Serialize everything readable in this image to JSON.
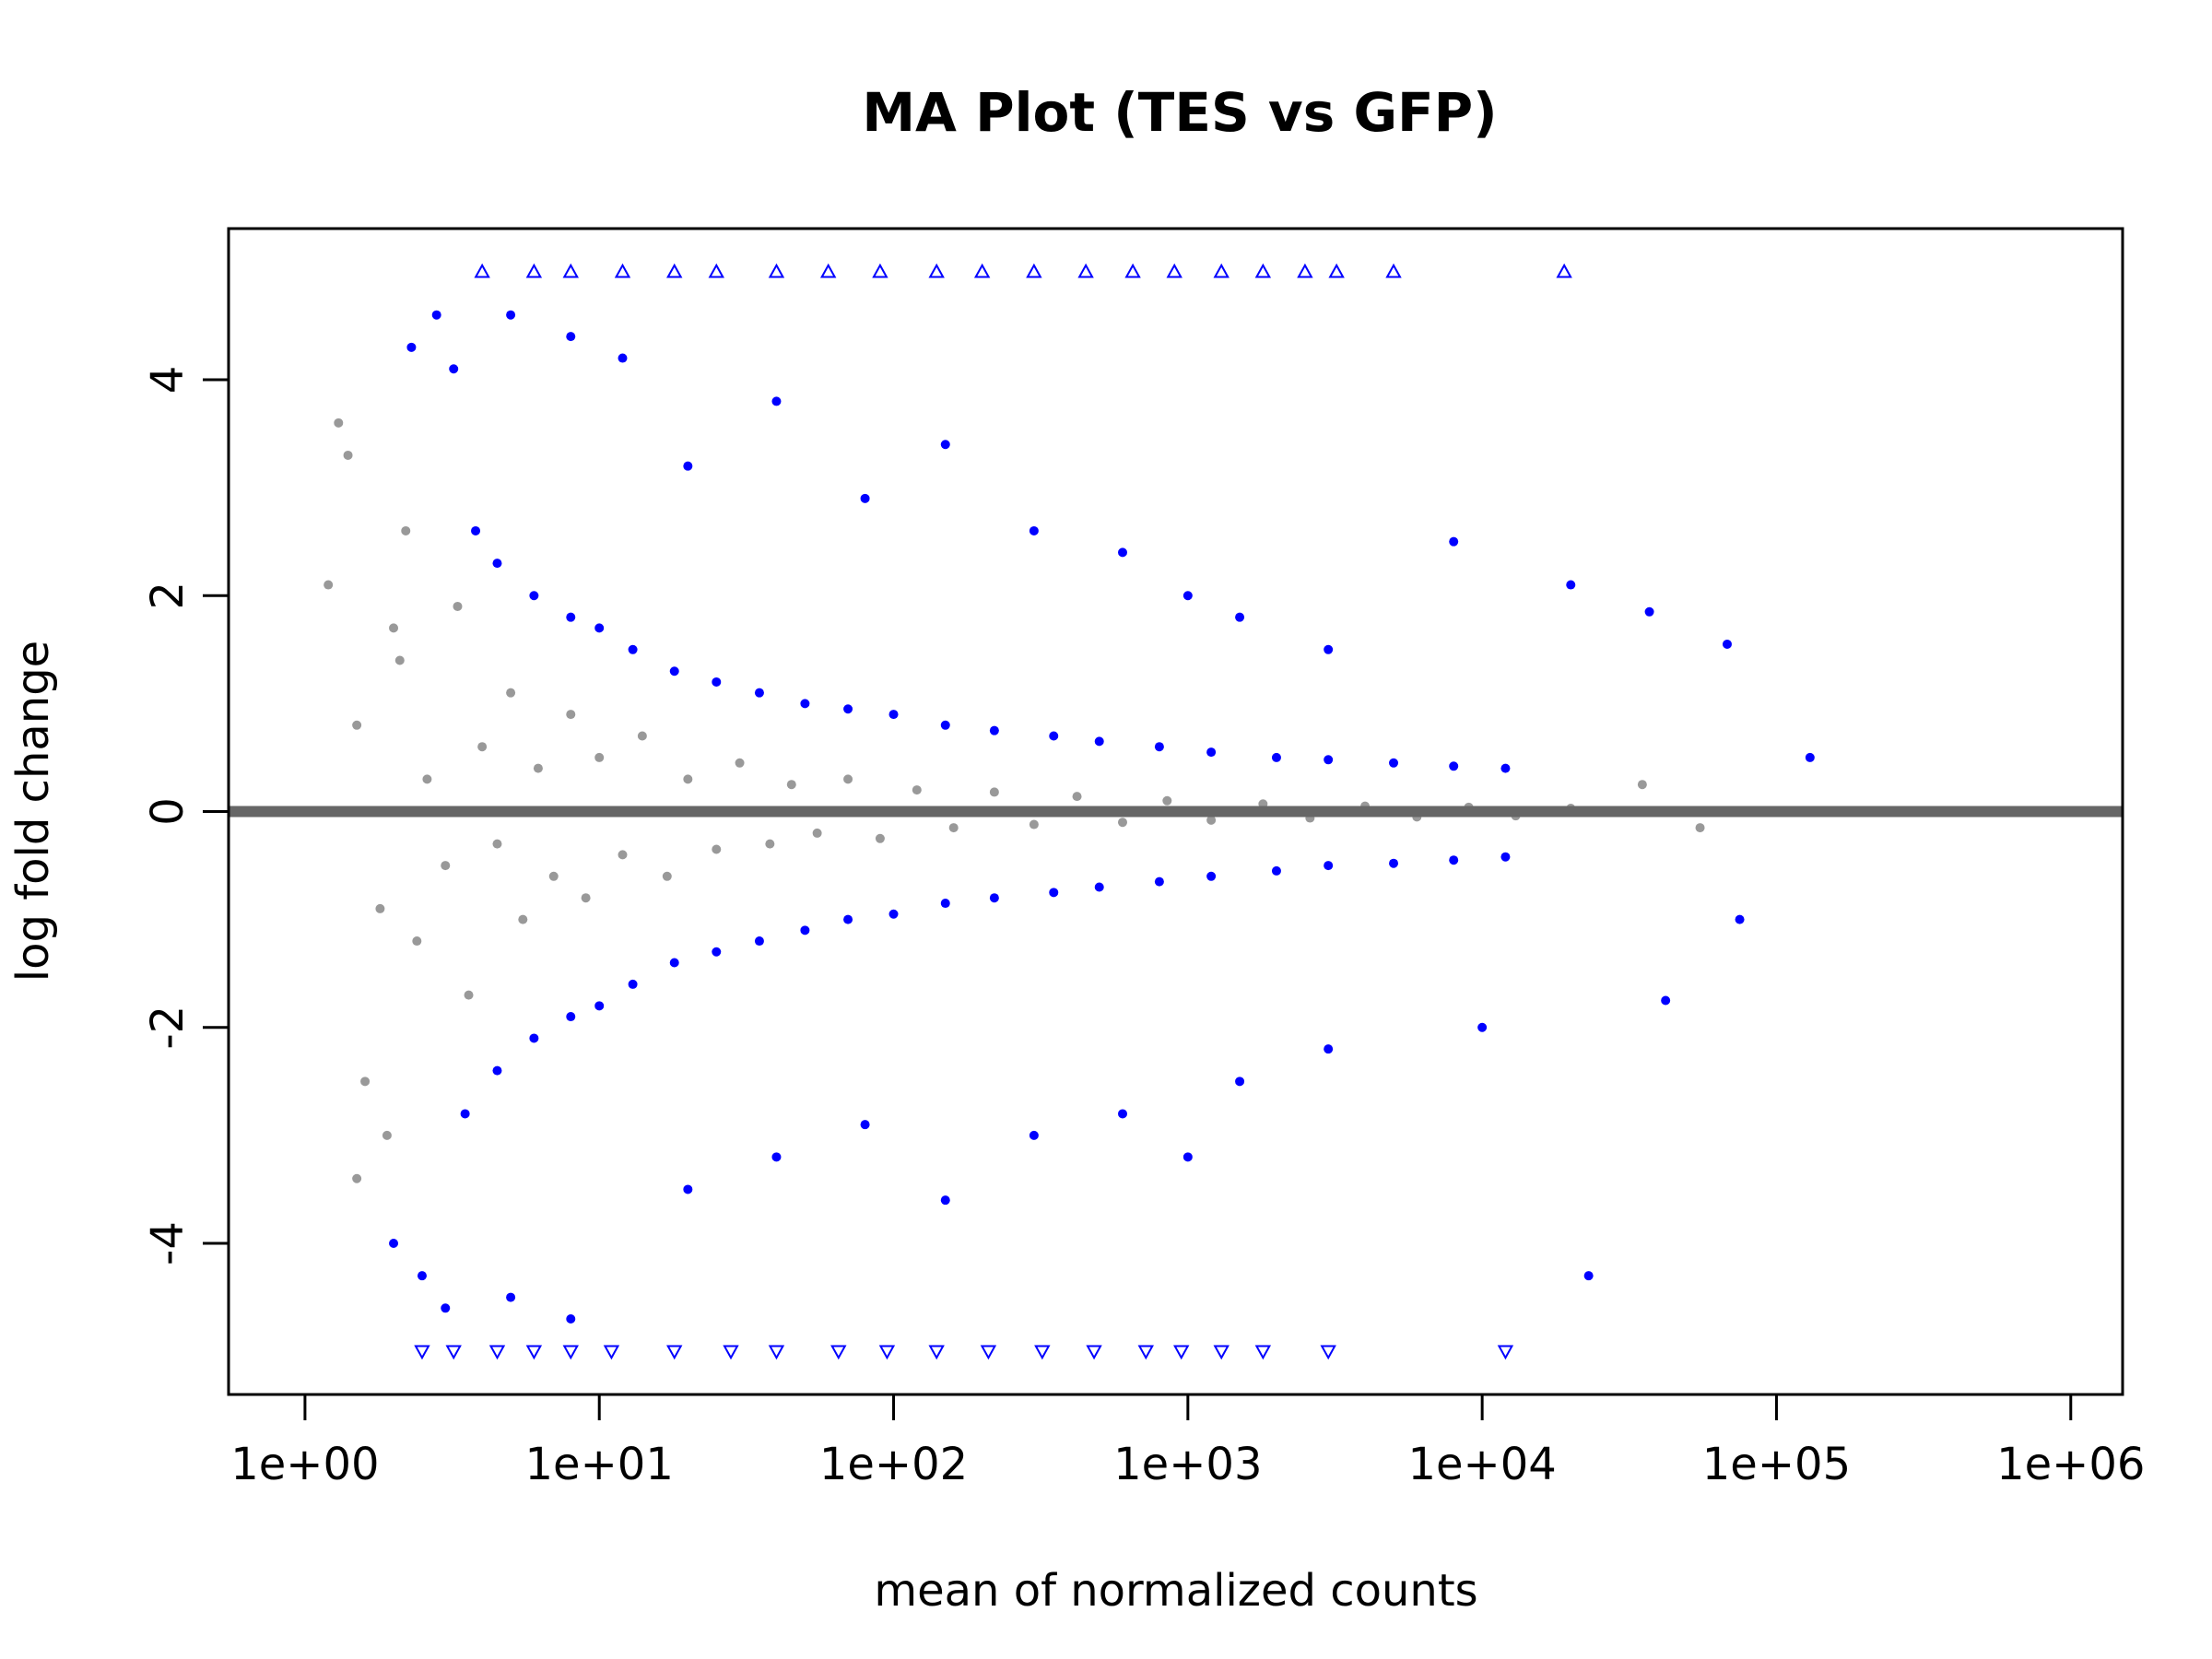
{
  "chart_data": {
    "type": "scatter",
    "title": "MA Plot (TES vs GFP)",
    "xlabel": "mean of normalized counts",
    "ylabel": "log fold change",
    "x_scale": "log10",
    "xlim": [
      0.55,
      1500000
    ],
    "ylim": [
      -5.4,
      5.4
    ],
    "x_ticks": [
      1,
      10,
      100,
      1000,
      10000,
      100000,
      1000000
    ],
    "x_tick_labels": [
      "1e+00",
      "1e+01",
      "1e+02",
      "1e+03",
      "1e+04",
      "1e+05",
      "1e+06"
    ],
    "y_ticks": [
      -4,
      -2,
      0,
      2,
      4
    ],
    "y_tick_labels": [
      "-4",
      "-2",
      "0",
      "2",
      "4"
    ],
    "reference_line": {
      "y": 0,
      "color": "#666666"
    },
    "colors": {
      "significant": "#0000ff",
      "not_significant": "#999999",
      "reference": "#666666"
    },
    "grid": false,
    "legend": "none",
    "series": [
      {
        "name": "",
        "color": "#999999",
        "marker": "dot",
        "points": [
          [
            1.5,
            0.8
          ],
          [
            1.8,
            -0.9
          ],
          [
            2.1,
            1.4
          ],
          [
            2.4,
            -1.2
          ],
          [
            2.6,
            0.3
          ],
          [
            3.0,
            -0.5
          ],
          [
            3.3,
            1.9
          ],
          [
            3.6,
            -1.7
          ],
          [
            4.0,
            0.6
          ],
          [
            4.5,
            -0.3
          ],
          [
            5.0,
            1.1
          ],
          [
            5.5,
            -1.0
          ],
          [
            6.2,
            0.4
          ],
          [
            7.0,
            -0.6
          ],
          [
            8.0,
            0.9
          ],
          [
            9.0,
            -0.8
          ],
          [
            10,
            0.5
          ],
          [
            12,
            -0.4
          ],
          [
            14,
            0.7
          ],
          [
            17,
            -0.6
          ],
          [
            20,
            0.3
          ],
          [
            25,
            -0.35
          ],
          [
            30,
            0.45
          ],
          [
            38,
            -0.3
          ],
          [
            45,
            0.25
          ],
          [
            55,
            -0.2
          ],
          [
            70,
            0.3
          ],
          [
            90,
            -0.25
          ],
          [
            120,
            0.2
          ],
          [
            160,
            -0.15
          ],
          [
            220,
            0.18
          ],
          [
            300,
            -0.12
          ],
          [
            420,
            0.14
          ],
          [
            600,
            -0.1
          ],
          [
            850,
            0.1
          ],
          [
            1200,
            -0.08
          ],
          [
            1800,
            0.07
          ],
          [
            2600,
            -0.06
          ],
          [
            4000,
            0.05
          ],
          [
            6000,
            -0.05
          ],
          [
            9000,
            0.04
          ],
          [
            13000,
            -0.04
          ],
          [
            20000,
            0.03
          ],
          [
            35000,
            0.25
          ],
          [
            55000,
            -0.15
          ],
          [
            1.2,
            2.1
          ],
          [
            1.4,
            3.3
          ],
          [
            1.6,
            -2.5
          ],
          [
            1.9,
            -3.0
          ],
          [
            2.2,
            2.6
          ],
          [
            1.3,
            3.6
          ],
          [
            1.5,
            -3.4
          ],
          [
            2.0,
            1.7
          ]
        ]
      },
      {
        "name": "",
        "color": "#0000ff",
        "marker": "dot",
        "points": [
          [
            3.8,
            2.6
          ],
          [
            4.5,
            2.3
          ],
          [
            6.0,
            2.0
          ],
          [
            8.0,
            1.8
          ],
          [
            10,
            1.7
          ],
          [
            13,
            1.5
          ],
          [
            18,
            1.3
          ],
          [
            25,
            1.2
          ],
          [
            35,
            1.1
          ],
          [
            50,
            1.0
          ],
          [
            70,
            0.95
          ],
          [
            100,
            0.9
          ],
          [
            150,
            0.8
          ],
          [
            220,
            0.75
          ],
          [
            350,
            0.7
          ],
          [
            500,
            0.65
          ],
          [
            800,
            0.6
          ],
          [
            1200,
            0.55
          ],
          [
            2000,
            0.5
          ],
          [
            3000,
            0.48
          ],
          [
            5000,
            0.45
          ],
          [
            8000,
            0.42
          ],
          [
            12000,
            0.4
          ],
          [
            3.5,
            -2.8
          ],
          [
            4.5,
            -2.4
          ],
          [
            6.0,
            -2.1
          ],
          [
            8.0,
            -1.9
          ],
          [
            10,
            -1.8
          ],
          [
            13,
            -1.6
          ],
          [
            18,
            -1.4
          ],
          [
            25,
            -1.3
          ],
          [
            35,
            -1.2
          ],
          [
            50,
            -1.1
          ],
          [
            70,
            -1.0
          ],
          [
            100,
            -0.95
          ],
          [
            150,
            -0.85
          ],
          [
            220,
            -0.8
          ],
          [
            350,
            -0.75
          ],
          [
            500,
            -0.7
          ],
          [
            800,
            -0.65
          ],
          [
            1200,
            -0.6
          ],
          [
            2000,
            -0.55
          ],
          [
            3000,
            -0.5
          ],
          [
            5000,
            -0.48
          ],
          [
            8000,
            -0.45
          ],
          [
            12000,
            -0.42
          ],
          [
            20,
            3.2
          ],
          [
            40,
            3.8
          ],
          [
            80,
            2.9
          ],
          [
            150,
            3.4
          ],
          [
            300,
            2.6
          ],
          [
            600,
            2.4
          ],
          [
            1000,
            2.0
          ],
          [
            1500,
            1.8
          ],
          [
            3000,
            1.5
          ],
          [
            8000,
            2.5
          ],
          [
            20000,
            2.1
          ],
          [
            37000,
            1.85
          ],
          [
            68000,
            1.55
          ],
          [
            130000,
            0.5
          ],
          [
            20,
            -3.5
          ],
          [
            40,
            -3.2
          ],
          [
            80,
            -2.9
          ],
          [
            150,
            -3.6
          ],
          [
            300,
            -3.0
          ],
          [
            600,
            -2.8
          ],
          [
            1000,
            -3.2
          ],
          [
            1500,
            -2.5
          ],
          [
            3000,
            -2.2
          ],
          [
            10000,
            -2.0
          ],
          [
            23000,
            -4.3
          ],
          [
            42000,
            -1.75
          ],
          [
            75000,
            -1.0
          ],
          [
            2.3,
            4.3
          ],
          [
            2.8,
            4.6
          ],
          [
            3.2,
            4.1
          ],
          [
            5,
            4.6
          ],
          [
            8,
            4.4
          ],
          [
            12,
            4.2
          ],
          [
            2.0,
            -4.0
          ],
          [
            2.5,
            -4.3
          ],
          [
            3.0,
            -4.6
          ],
          [
            5,
            -4.5
          ],
          [
            8,
            -4.7
          ]
        ]
      },
      {
        "name": "",
        "color": "#0000ff",
        "marker": "triangle-up",
        "y": 5,
        "x": [
          4,
          6,
          8,
          12,
          18,
          25,
          40,
          60,
          90,
          140,
          200,
          300,
          450,
          650,
          900,
          1300,
          1800,
          2500,
          3200,
          5000,
          19000
        ]
      },
      {
        "name": "",
        "color": "#0000ff",
        "marker": "triangle-down",
        "y": -5,
        "x": [
          2.5,
          3.2,
          4.5,
          6,
          8,
          11,
          18,
          28,
          40,
          65,
          95,
          140,
          210,
          320,
          480,
          720,
          950,
          1300,
          1800,
          3000,
          12000
        ]
      }
    ]
  }
}
